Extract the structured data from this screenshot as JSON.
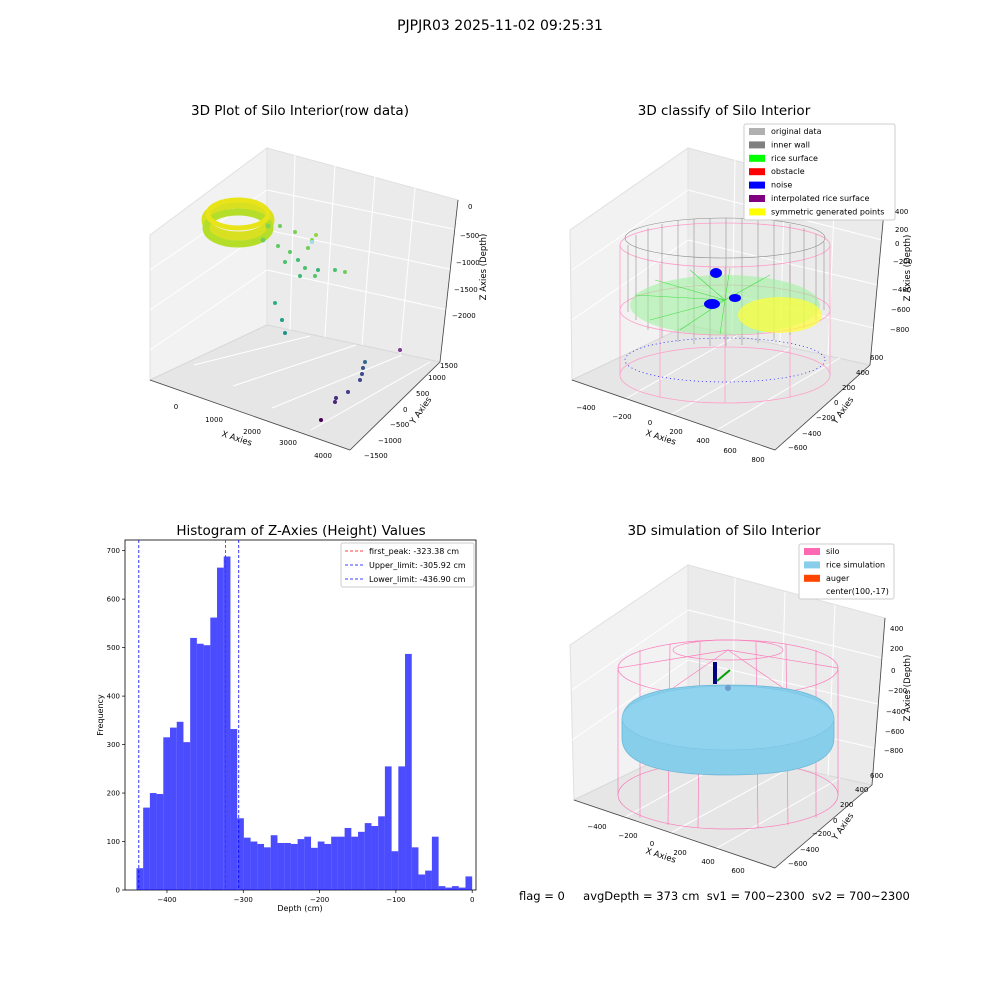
{
  "suptitle": "PJPJR03 2025-11-02 09:25:31",
  "panels": {
    "p1": {
      "title": "3D Plot of Silo Interior(row data)",
      "xlabel": "X Axies",
      "ylabel": "Y Axies",
      "zlabel": "Z Axies (Depth)",
      "xticks": [
        "0",
        "1000",
        "2000",
        "3000",
        "4000"
      ],
      "yticks": [
        "−1500",
        "−1000",
        "−500",
        "0",
        "500",
        "1000",
        "1500"
      ],
      "zticks": [
        "0",
        "−500",
        "−1000",
        "−1500",
        "−2000"
      ]
    },
    "p2": {
      "title": "3D classify of Silo Interior",
      "xlabel": "X Axies",
      "ylabel": "Y Axies",
      "zlabel": "Z Axies (Depth)",
      "xticks": [
        "−400",
        "−200",
        "0",
        "200",
        "400",
        "600",
        "800"
      ],
      "yticks": [
        "−600",
        "−400",
        "−200",
        "0",
        "200",
        "400",
        "600"
      ],
      "zticks": [
        "200",
        "0",
        "−200",
        "−400",
        "−600",
        "−800"
      ],
      "legend": [
        {
          "label": "original data",
          "color": "#b0b0b0"
        },
        {
          "label": "inner wall",
          "color": "#808080"
        },
        {
          "label": "rice surface",
          "color": "#00ff00"
        },
        {
          "label": "obstacle",
          "color": "#ff0000"
        },
        {
          "label": "noise",
          "color": "#0000ff"
        },
        {
          "label": "interpolated rice surface",
          "color": "#800080"
        },
        {
          "label": "symmetric generated points",
          "color": "#ffff00"
        }
      ],
      "legend_ticks": [
        "400",
        "200",
        "0"
      ]
    },
    "p3": {
      "title": "Histogram of Z-Axies (Height) Values"
    },
    "p4": {
      "title": "3D simulation of Silo Interior",
      "xlabel": "X Axies",
      "ylabel": "Y Axies",
      "zlabel": "Z Axies (Depth)",
      "xticks": [
        "−400",
        "−200",
        "0",
        "200",
        "400",
        "600"
      ],
      "yticks": [
        "−600",
        "−400",
        "−200",
        "0",
        "200",
        "400",
        "600"
      ],
      "zticks": [
        "400",
        "200",
        "0",
        "−200",
        "−400",
        "−600",
        "−800"
      ],
      "legend": [
        {
          "label": "silo",
          "color": "#ff69b4"
        },
        {
          "label": "rice simulation",
          "color": "#87ceeb"
        },
        {
          "label": "auger",
          "color": "#ff4500"
        },
        {
          "label": "center(100,-17)",
          "color": ""
        }
      ]
    }
  },
  "chart_data": {
    "type": "bar",
    "title": "Histogram of Z-Axies (Height) Values",
    "xlabel": "Depth (cm)",
    "ylabel": "Frequency",
    "xlim": [
      -455,
      5
    ],
    "ylim": [
      0,
      722
    ],
    "xticks": [
      -400,
      -300,
      -200,
      -100,
      0
    ],
    "xtick_labels": [
      "−400",
      "−300",
      "−200",
      "−100",
      "0"
    ],
    "yticks": [
      0,
      100,
      200,
      300,
      400,
      500,
      600,
      700
    ],
    "bin_start": -440,
    "bin_width": 8.8,
    "counts": [
      45,
      170,
      200,
      198,
      315,
      335,
      347,
      305,
      520,
      508,
      505,
      562,
      665,
      688,
      332,
      148,
      108,
      100,
      95,
      88,
      113,
      97,
      97,
      95,
      105,
      110,
      87,
      100,
      95,
      110,
      110,
      128,
      110,
      120,
      138,
      132,
      152,
      255,
      80,
      255,
      487,
      88,
      32,
      40,
      110,
      8,
      5,
      8,
      5,
      28
    ],
    "bar_color": "#0000ff",
    "vlines": [
      {
        "x": -323.38,
        "color": "#ff0000",
        "label": "first_peak: -323.38 cm"
      },
      {
        "x": -305.92,
        "color": "#0000ff",
        "label": "Upper_limit: -305.92 cm"
      },
      {
        "x": -436.9,
        "color": "#0000ff",
        "label": "Lower_limit: -436.90 cm"
      }
    ],
    "legend_position": "upper right"
  },
  "footer": {
    "flag": "flag = 0",
    "avg": "avgDepth = 373 cm",
    "sv1": "sv1 = 700~2300",
    "sv2": "sv2 = 700~2300"
  }
}
